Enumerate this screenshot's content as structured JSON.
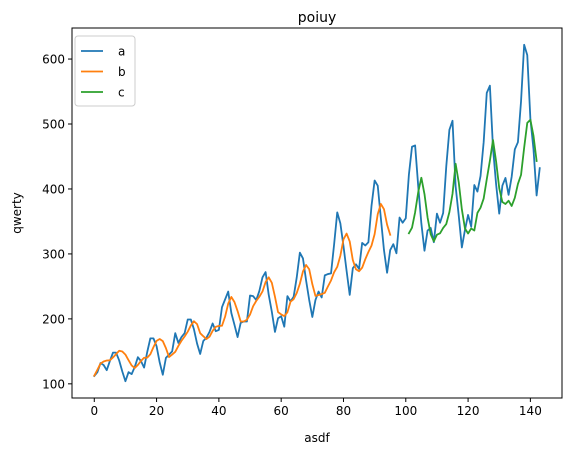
{
  "chart_data": {
    "type": "line",
    "title": "poiuy",
    "xlabel": "asdf",
    "ylabel": "qwerty",
    "xlim": [
      -7.15,
      150.15
    ],
    "ylim": [
      78.2,
      647.8
    ],
    "xticks": [
      0,
      20,
      40,
      60,
      80,
      100,
      120,
      140
    ],
    "yticks": [
      100,
      200,
      300,
      400,
      500,
      600
    ],
    "grid": false,
    "legend": "top-left",
    "series": [
      {
        "name": "a",
        "color": "#1f77b4",
        "x0": 0,
        "values": [
          112,
          118,
          132,
          129,
          121,
          135,
          148,
          148,
          136,
          119,
          104,
          118,
          115,
          126,
          141,
          135,
          125,
          149,
          170,
          170,
          158,
          133,
          114,
          140,
          145,
          150,
          178,
          163,
          172,
          178,
          199,
          199,
          184,
          162,
          146,
          166,
          171,
          180,
          193,
          181,
          183,
          218,
          230,
          242,
          209,
          191,
          172,
          194,
          196,
          196,
          236,
          235,
          229,
          243,
          264,
          272,
          237,
          211,
          180,
          201,
          204,
          188,
          235,
          227,
          234,
          264,
          302,
          293,
          259,
          229,
          203,
          229,
          242,
          233,
          267,
          269,
          270,
          315,
          364,
          347,
          312,
          274,
          237,
          278,
          284,
          277,
          317,
          313,
          318,
          374,
          413,
          405,
          355,
          306,
          271,
          306,
          315,
          301,
          356,
          348,
          355,
          422,
          465,
          467,
          404,
          347,
          305,
          336,
          340,
          318,
          362,
          348,
          363,
          435,
          491,
          505,
          404,
          359,
          310,
          337,
          360,
          342,
          406,
          396,
          420,
          472,
          548,
          559,
          463,
          407,
          362,
          405,
          417,
          391,
          419,
          461,
          472,
          535,
          622,
          606,
          508,
          461,
          390,
          432
        ]
      },
      {
        "name": "b",
        "color": "#ff7f0e",
        "x0": 0,
        "values": [
          112.6,
          121.7,
          131.2,
          134.4,
          135.9,
          136.2,
          140.6,
          145.8,
          150.9,
          149.8,
          145.0,
          136.4,
          128.3,
          124.3,
          129.1,
          135.3,
          140.1,
          140.4,
          145.5,
          156.5,
          166.1,
          169.0,
          165.8,
          155.0,
          141.2,
          145.1,
          149.3,
          158.4,
          166.3,
          172.9,
          180.3,
          189.9,
          196.4,
          191.9,
          178.0,
          173.3,
          169.0,
          172.6,
          181.7,
          187.8,
          189.2,
          189.4,
          203.5,
          223.6,
          233.7,
          226.0,
          212.1,
          196.0,
          196.0,
          198.7,
          206.6,
          219.6,
          227.7,
          234.1,
          242.2,
          256.7,
          264.0,
          255.6,
          234.1,
          210.4,
          206.9,
          204.2,
          210.2,
          226.4,
          230.4,
          239.9,
          254.1,
          273.1,
          283.0,
          276.4,
          253.5,
          235.3,
          236.8,
          238.1,
          240.1,
          249.8,
          259.1,
          271.8,
          280.1,
          297.3,
          322.4,
          331.4,
          319.2,
          290.5,
          276.4,
          273.3,
          278.9,
          291.8,
          303.0,
          312.8,
          330.5,
          361.2,
          376.9,
          368.9,
          345.0,
          329.5
        ]
      },
      {
        "name": "c",
        "color": "#2ca02c",
        "x0": 101,
        "values": [
          331.7,
          340.4,
          364.1,
          395.2,
          417.3,
          392.2,
          356.0,
          330.2,
          319.4,
          329.6,
          331.7,
          340.0,
          346.0,
          364.3,
          392.4,
          438.8,
          410.1,
          368.7,
          339.1,
          331.4,
          339.2,
          336.0,
          363.2,
          371.2,
          385.2,
          414.9,
          443.5,
          475.4,
          442.1,
          401.3,
          380.0,
          376.8,
          381.9,
          373.8,
          386.3,
          407.8,
          421.7,
          463.4,
          501.7,
          506.5,
          481.8,
          443.1
        ]
      }
    ]
  }
}
